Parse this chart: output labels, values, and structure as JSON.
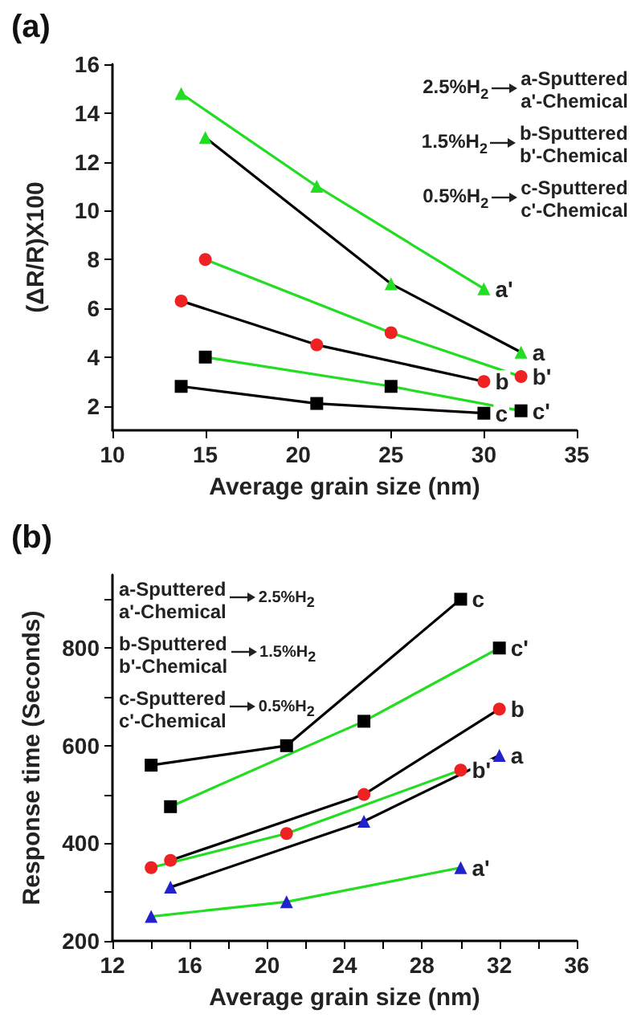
{
  "chart_data": [
    {
      "type": "line",
      "title": "(a)",
      "xlabel": "Average grain size (nm)",
      "ylabel": "(ΔR/R)X100",
      "xlim": [
        10,
        35
      ],
      "xticks": [
        10,
        15,
        20,
        25,
        30,
        35
      ],
      "ylim": [
        1,
        16
      ],
      "yticks": [
        2,
        4,
        6,
        8,
        10,
        12,
        14,
        16
      ],
      "grid": false,
      "legend": false,
      "annotations": [
        "2.5%H$_{2}$",
        "a-Sputtered",
        "a'-Chemical",
        "1.5%H$_{2}$",
        "b-Sputtered",
        "b'-Chemical",
        "0.5%H$_{2}$",
        "c-Sputtered",
        "c'-Chemical"
      ],
      "series": [
        {
          "name": "a",
          "color": "#000000",
          "marker": "triangle",
          "colors": [
            "#22dd22",
            "#22dd22",
            "#22dd22"
          ],
          "x": [
            15,
            25,
            32
          ],
          "values": [
            13,
            7,
            4.2
          ]
        },
        {
          "name": "a'",
          "color": "#22dd22",
          "marker": "triangle",
          "colors": [
            "#22dd22",
            "#22dd22",
            "#22dd22"
          ],
          "x": [
            13.7,
            21,
            30
          ],
          "values": [
            14.8,
            11,
            6.8
          ]
        },
        {
          "name": "b",
          "color": "#000000",
          "marker": "circle",
          "colors": [
            "#ee2222",
            "#ee2222",
            "#ee2222"
          ],
          "x": [
            13.7,
            21,
            30
          ],
          "values": [
            6.3,
            4.5,
            3
          ]
        },
        {
          "name": "b'",
          "color": "#22dd22",
          "marker": "circle",
          "colors": [
            "#ee2222",
            "#ee2222",
            "#ee2222"
          ],
          "x": [
            15,
            25,
            32
          ],
          "values": [
            8,
            5,
            3.2
          ]
        },
        {
          "name": "c",
          "color": "#000000",
          "marker": "square",
          "colors": [
            "#000000",
            "#000000",
            "#000000"
          ],
          "x": [
            13.7,
            21,
            30
          ],
          "values": [
            2.8,
            2.1,
            1.7
          ]
        },
        {
          "name": "c'",
          "color": "#22dd22",
          "marker": "square",
          "colors": [
            "#000000",
            "#000000",
            "#000000"
          ],
          "x": [
            15,
            25,
            32
          ],
          "values": [
            4,
            2.8,
            1.8
          ]
        }
      ]
    },
    {
      "type": "line",
      "title": "(b)",
      "xlabel": "Average grain size (nm)",
      "ylabel": "Response time (Seconds)",
      "xlim": [
        12,
        36
      ],
      "xticks": [
        12,
        {
          "value": 14,
          "label": null
        },
        16,
        {
          "value": 18,
          "label": null
        },
        20,
        {
          "value": 22,
          "label": null
        },
        24,
        {
          "value": 26,
          "label": null
        },
        28,
        {
          "value": 30,
          "label": null
        },
        32,
        {
          "value": 34,
          "label": null
        },
        36
      ],
      "ylim": [
        200,
        950
      ],
      "yticks": [
        200,
        {
          "value": 300,
          "label": null
        },
        400,
        {
          "value": 500,
          "label": null
        },
        600,
        {
          "value": 700,
          "label": null
        },
        800,
        {
          "value": 900,
          "label": null
        }
      ],
      "grid": false,
      "legend": false,
      "annotations": [
        "2.5%H$_{2}$",
        "a-Sputtered",
        "a'-Chemical",
        "1.5%H$_{2}$",
        "b-Sputtered",
        "b'-Chemical",
        "0.5%H$_{2}$",
        "c-Sputtered",
        "c'-Chemical"
      ],
      "series": [
        {
          "name": "c",
          "color": "#000000",
          "marker": "square",
          "colors": [
            "#000000",
            "#000000",
            "#000000"
          ],
          "x": [
            14,
            21,
            30
          ],
          "values": [
            560,
            600,
            900
          ]
        },
        {
          "name": "c'",
          "color": "#22dd22",
          "marker": "square",
          "colors": [
            "#000000",
            "#000000",
            "#000000"
          ],
          "x": [
            15,
            25,
            32
          ],
          "values": [
            475,
            650,
            800
          ]
        },
        {
          "name": "b",
          "color": "#000000",
          "marker": "circle",
          "colors": [
            "#ee2222",
            "#ee2222",
            "#ee2222"
          ],
          "x": [
            15,
            25,
            32
          ],
          "values": [
            365,
            500,
            675
          ]
        },
        {
          "name": "b'",
          "color": "#22dd22",
          "marker": "circle",
          "colors": [
            "#ee2222",
            "#ee2222",
            "#ee2222"
          ],
          "x": [
            14,
            21,
            30
          ],
          "values": [
            350,
            420,
            550
          ]
        },
        {
          "name": "a",
          "color": "#000000",
          "marker": "triangle",
          "colors": [
            "#2222cc",
            "#2222cc",
            "#2222cc"
          ],
          "x": [
            15,
            25,
            32
          ],
          "values": [
            310,
            445,
            580
          ]
        },
        {
          "name": "a'",
          "color": "#22dd22",
          "marker": "triangle",
          "colors": [
            "#2222cc",
            "#2222cc",
            "#2222cc"
          ],
          "x": [
            14,
            21,
            30
          ],
          "values": [
            250,
            280,
            350
          ]
        }
      ]
    }
  ]
}
